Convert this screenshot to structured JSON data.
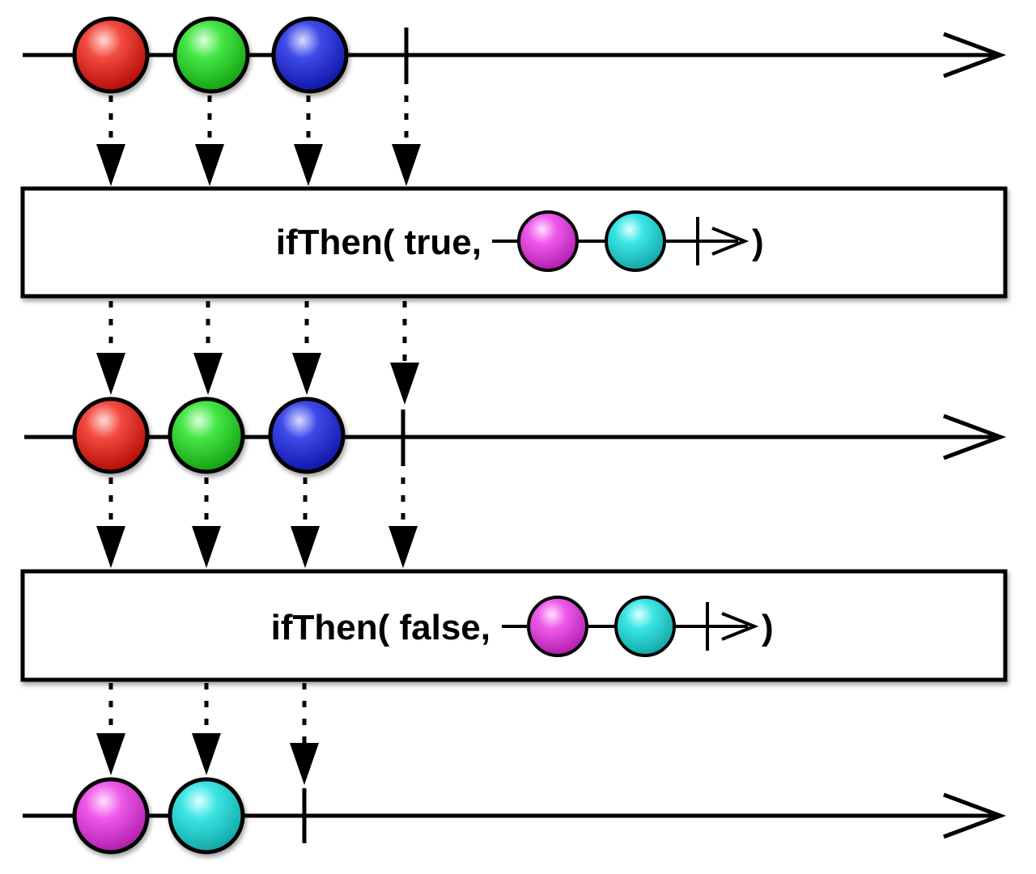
{
  "colors": {
    "red": "#e8241b",
    "green": "#2fd62f",
    "blue": "#2a35d9",
    "magenta": "#e84ae3",
    "cyan": "#2fdedd",
    "stroke": "#000000"
  },
  "marble_order": {
    "source": [
      "red",
      "green",
      "blue"
    ],
    "inner": [
      "magenta",
      "cyan"
    ],
    "result": [
      "magenta",
      "cyan"
    ]
  },
  "operators": [
    {
      "label_prefix": "ifThen( true,",
      "label_suffix": ")"
    },
    {
      "label_prefix": "ifThen( false,",
      "label_suffix": ")"
    }
  ]
}
